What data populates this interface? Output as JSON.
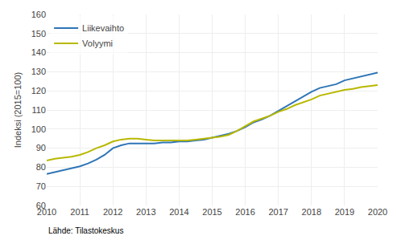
{
  "chart_data": {
    "type": "line",
    "ylabel": "Indeksi (2015=100)",
    "annotations": [
      "Lähde: Tilastokeskus"
    ],
    "x": [
      2010.0,
      2010.25,
      2010.5,
      2010.75,
      2011.0,
      2011.25,
      2011.5,
      2011.75,
      2012.0,
      2012.25,
      2012.5,
      2012.75,
      2013.0,
      2013.25,
      2013.5,
      2013.75,
      2014.0,
      2014.25,
      2014.5,
      2014.75,
      2015.0,
      2015.25,
      2015.5,
      2015.75,
      2016.0,
      2016.25,
      2016.5,
      2016.75,
      2017.0,
      2017.25,
      2017.5,
      2017.75,
      2018.0,
      2018.25,
      2018.5,
      2018.75,
      2019.0,
      2019.25,
      2019.5,
      2019.75,
      2020.0
    ],
    "series": [
      {
        "name": "Liikevaihto",
        "color": "#2e75b6",
        "values": [
          76.5,
          77.5,
          78.5,
          79.5,
          80.5,
          82.0,
          84.0,
          86.5,
          90.0,
          91.5,
          92.5,
          92.5,
          92.5,
          92.5,
          93.0,
          93.0,
          93.5,
          93.5,
          94.0,
          94.5,
          95.5,
          96.5,
          97.5,
          99.0,
          101.0,
          103.5,
          105.0,
          107.0,
          109.5,
          112.0,
          114.5,
          117.0,
          119.5,
          121.5,
          122.5,
          123.5,
          125.5,
          126.5,
          127.5,
          128.5,
          129.5
        ]
      },
      {
        "name": "Volyymi",
        "color": "#b8b800",
        "values": [
          83.5,
          84.5,
          85.0,
          85.5,
          86.5,
          88.0,
          90.0,
          91.5,
          93.5,
          94.5,
          95.0,
          95.0,
          94.5,
          94.0,
          94.0,
          94.0,
          94.0,
          94.0,
          94.5,
          95.0,
          95.5,
          96.0,
          97.0,
          99.0,
          101.5,
          104.0,
          105.5,
          107.0,
          109.0,
          110.5,
          112.5,
          114.0,
          115.5,
          117.5,
          118.5,
          119.5,
          120.5,
          121.0,
          122.0,
          122.5,
          123.0
        ]
      }
    ],
    "xlim": [
      2010,
      2020
    ],
    "ylim": [
      60,
      160
    ],
    "xticks": [
      2010,
      2011,
      2012,
      2013,
      2014,
      2015,
      2016,
      2017,
      2018,
      2019,
      2020
    ],
    "yticks": [
      60,
      70,
      80,
      90,
      100,
      110,
      120,
      130,
      140,
      150,
      160
    ],
    "grid": true,
    "legend": "upper left"
  }
}
